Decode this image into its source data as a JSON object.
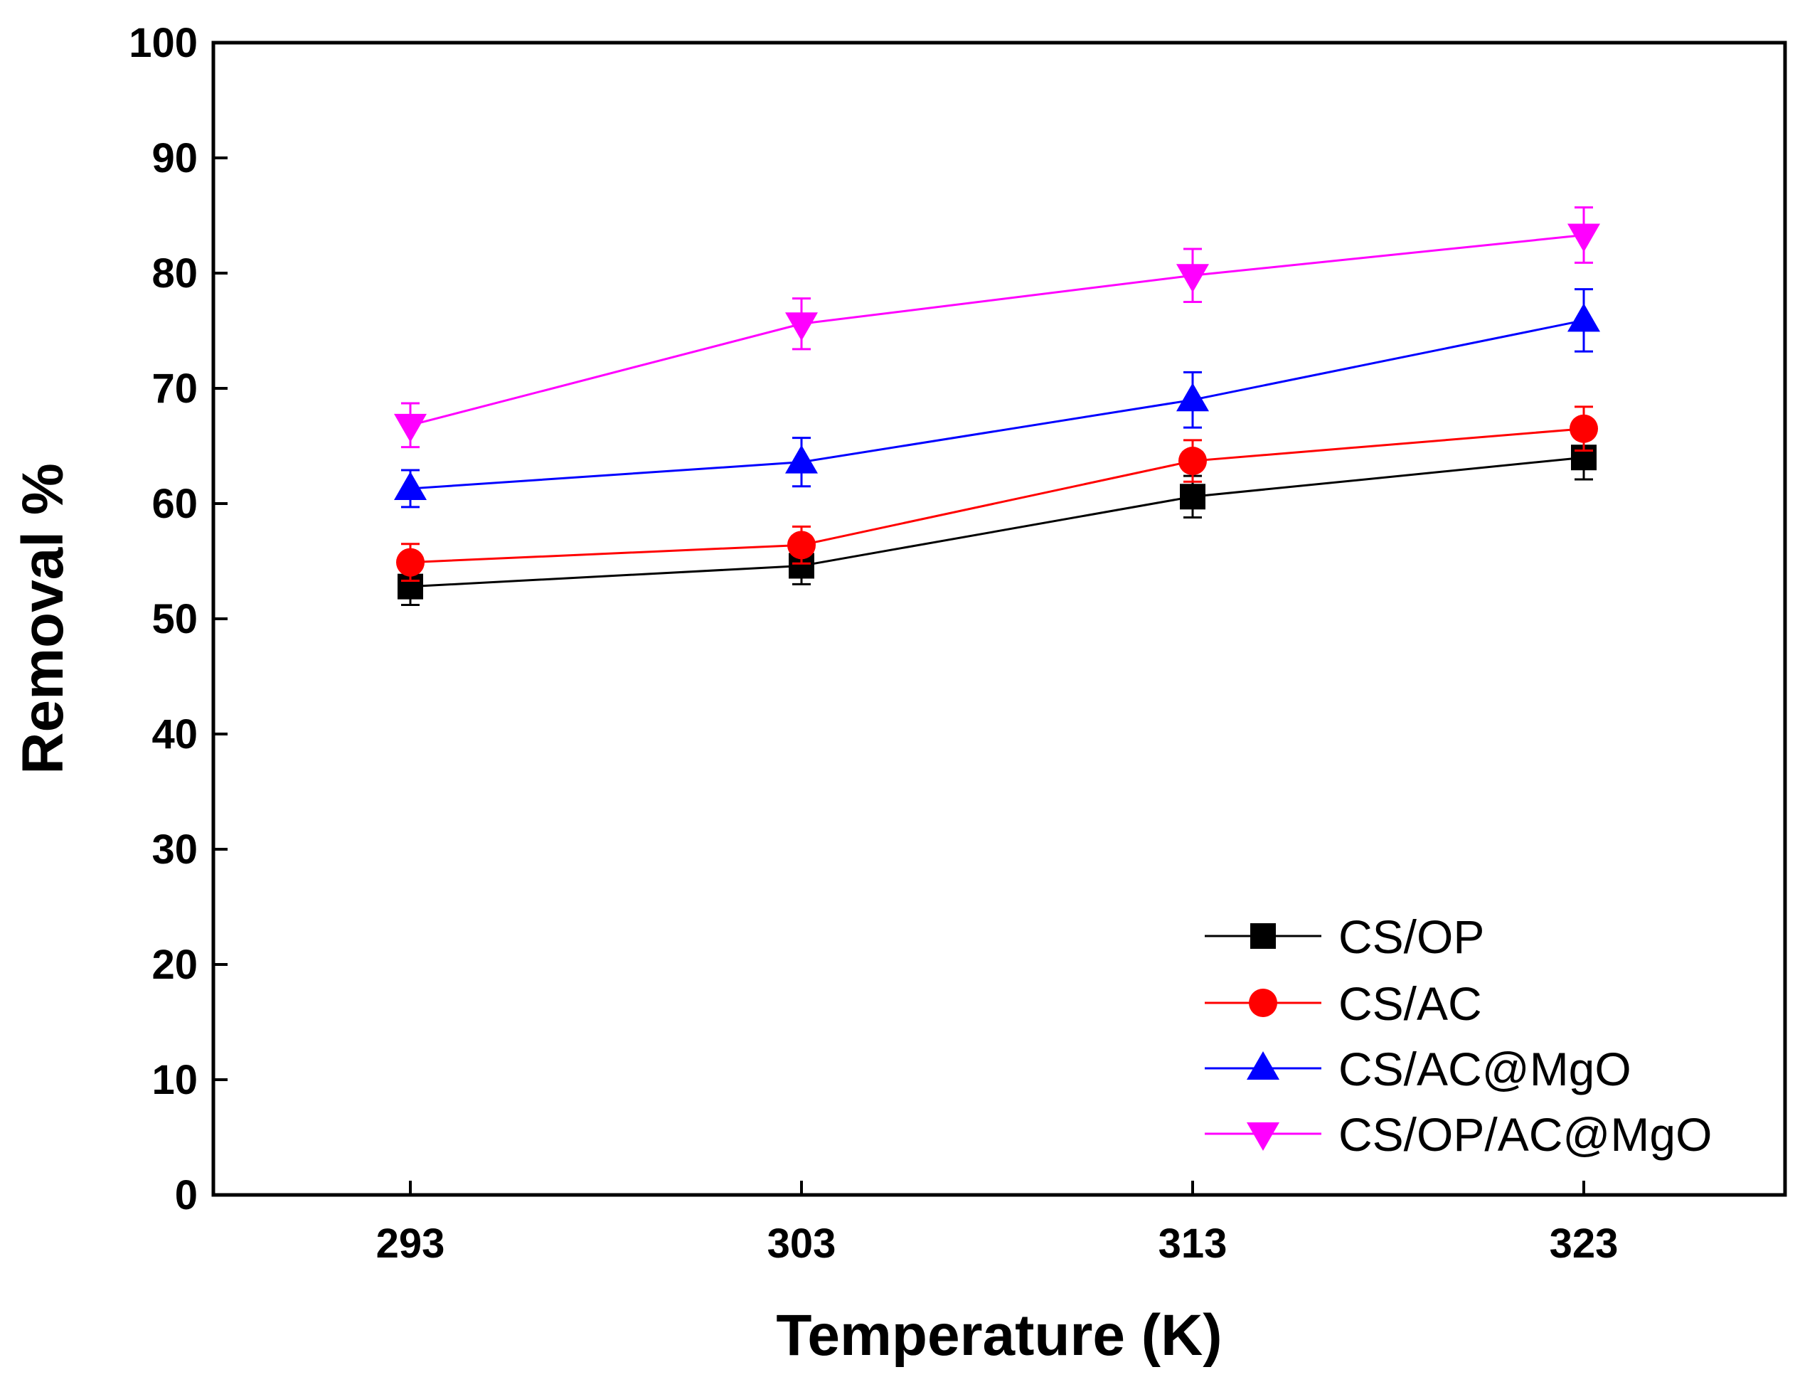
{
  "chart_data": {
    "type": "line",
    "title": "",
    "xlabel": "Temperature (K)",
    "ylabel": "Removal %",
    "x": [
      293,
      303,
      313,
      323
    ],
    "x_tick_labels": [
      "293",
      "303",
      "313",
      "323"
    ],
    "ylim": [
      0,
      100
    ],
    "y_ticks": [
      0,
      10,
      20,
      30,
      40,
      50,
      60,
      70,
      80,
      90,
      100
    ],
    "y_tick_labels": [
      "0",
      "10",
      "20",
      "30",
      "40",
      "50",
      "60",
      "70",
      "80",
      "90",
      "100"
    ],
    "legend_position": "bottom-right",
    "series": [
      {
        "name": "CS/OP",
        "color": "#000000",
        "marker": "square",
        "values": [
          52.8,
          54.6,
          60.6,
          64.0
        ],
        "errors": [
          1.6,
          1.6,
          1.8,
          1.9
        ]
      },
      {
        "name": "CS/AC",
        "color": "#ff0000",
        "marker": "circle",
        "values": [
          54.9,
          56.4,
          63.7,
          66.5
        ],
        "errors": [
          1.6,
          1.6,
          1.8,
          1.9
        ]
      },
      {
        "name": "CS/AC@MgO",
        "color": "#0000ff",
        "marker": "triangle-up",
        "values": [
          61.3,
          63.6,
          69.0,
          75.9
        ],
        "errors": [
          1.6,
          2.1,
          2.4,
          2.7
        ]
      },
      {
        "name": "CS/OP/AC@MgO",
        "color": "#ff00ff",
        "marker": "triangle-down",
        "values": [
          66.8,
          75.6,
          79.8,
          83.3
        ],
        "errors": [
          1.9,
          2.2,
          2.3,
          2.4
        ]
      }
    ]
  }
}
